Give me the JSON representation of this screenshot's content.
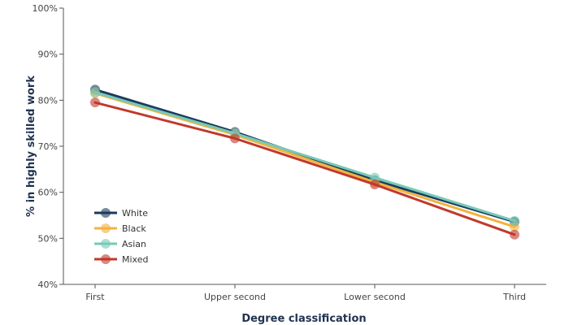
{
  "chart_data": {
    "type": "line",
    "categories": [
      "First",
      "Upper second",
      "Lower second",
      "Third"
    ],
    "xlabel": "Degree classification",
    "ylabel": "% in highly skilled work",
    "ylim": [
      40,
      100
    ],
    "yticks": [
      40,
      50,
      60,
      70,
      80,
      90,
      100
    ],
    "ytick_suffix": "%",
    "grid": false,
    "legend_position": "bottom-left",
    "series": [
      {
        "name": "White",
        "color": "#1b3a5c",
        "values": [
          82.3,
          73.1,
          62.6,
          53.6
        ]
      },
      {
        "name": "Black",
        "color": "#f2b33d",
        "values": [
          81.5,
          72.5,
          62.2,
          52.5
        ]
      },
      {
        "name": "Asian",
        "color": "#76c9b8",
        "values": [
          81.7,
          72.8,
          63.2,
          53.8
        ]
      },
      {
        "name": "Mixed",
        "color": "#c0392b",
        "values": [
          79.5,
          71.7,
          61.7,
          50.8
        ]
      }
    ]
  }
}
